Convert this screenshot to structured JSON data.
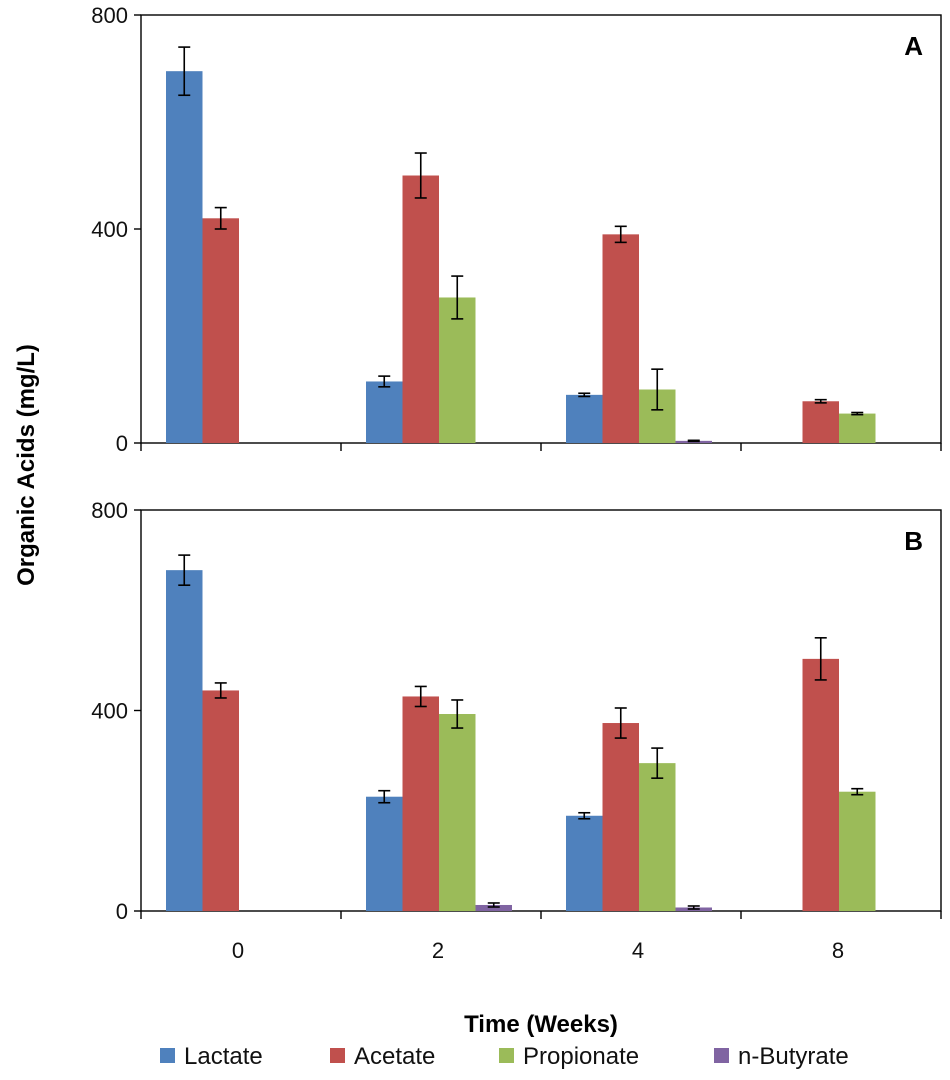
{
  "chart_data": {
    "type": "bar",
    "xlabel": "Time (Weeks)",
    "ylabel": "Organic Acids (mg/L)",
    "categories": [
      "0",
      "2",
      "4",
      "8"
    ],
    "ylim": [
      0,
      800
    ],
    "yticks": [
      "0",
      "400",
      "800"
    ],
    "legend": {
      "placement": "bottom",
      "entries": [
        {
          "name": "Lactate",
          "color": "#4F81BD"
        },
        {
          "name": "Acetate",
          "color": "#C0504D"
        },
        {
          "name": "Propionate",
          "color": "#9BBB59"
        },
        {
          "name": "n-Butyrate",
          "color": "#8064A2"
        }
      ]
    },
    "panels": [
      {
        "label": "A",
        "series": [
          {
            "name": "Lactate",
            "values": [
              695,
              115,
              90,
              0
            ],
            "errors": [
              45,
              10,
              3,
              0
            ]
          },
          {
            "name": "Acetate",
            "values": [
              420,
              500,
              390,
              78
            ],
            "errors": [
              20,
              42,
              15,
              3
            ]
          },
          {
            "name": "Propionate",
            "values": [
              0,
              272,
              100,
              55
            ],
            "errors": [
              0,
              40,
              38,
              2
            ]
          },
          {
            "name": "n-Butyrate",
            "values": [
              0,
              0,
              4,
              0
            ],
            "errors": [
              0,
              0,
              1,
              0
            ]
          }
        ]
      },
      {
        "label": "B",
        "series": [
          {
            "name": "Lactate",
            "values": [
              680,
              228,
              190,
              0
            ],
            "errors": [
              30,
              12,
              6,
              0
            ]
          },
          {
            "name": "Acetate",
            "values": [
              440,
              428,
              375,
              503
            ],
            "errors": [
              15,
              20,
              30,
              42
            ]
          },
          {
            "name": "Propionate",
            "values": [
              0,
              393,
              295,
              238
            ],
            "errors": [
              0,
              28,
              30,
              6
            ]
          },
          {
            "name": "n-Butyrate",
            "values": [
              0,
              12,
              7,
              0
            ],
            "errors": [
              0,
              4,
              3,
              0
            ]
          }
        ]
      }
    ]
  }
}
